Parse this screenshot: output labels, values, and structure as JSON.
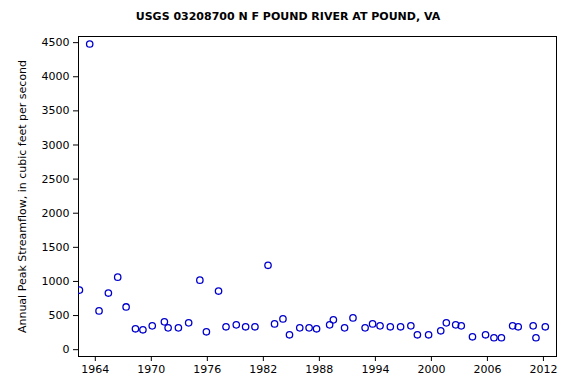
{
  "chart_data": {
    "type": "scatter",
    "title": "USGS 03208700 N F POUND RIVER AT POUND, VA",
    "y_label": "Annual Peak Streamflow, in cubic feet per second",
    "x": [
      1962.3,
      1963.4,
      1964.4,
      1965.4,
      1966.4,
      1967.3,
      1968.3,
      1969.1,
      1970.1,
      1971.4,
      1971.8,
      1972.9,
      1974.0,
      1975.2,
      1975.9,
      1977.2,
      1978.0,
      1979.1,
      1980.1,
      1981.1,
      1982.5,
      1983.2,
      1984.1,
      1984.8,
      1985.9,
      1986.9,
      1987.7,
      1989.1,
      1989.5,
      1990.7,
      1991.6,
      1992.9,
      1993.7,
      1994.5,
      1995.6,
      1996.7,
      1997.8,
      1998.5,
      1999.7,
      2001.0,
      2001.6,
      2002.6,
      2003.2,
      2004.4,
      2005.8,
      2006.7,
      2007.5,
      2008.7,
      2009.3,
      2010.9,
      2011.2,
      2012.2
    ],
    "values": [
      873,
      4480,
      568,
      830,
      1063,
      626,
      306,
      291,
      349,
      408,
      320,
      320,
      393,
      1019,
      262,
      859,
      335,
      364,
      335,
      335,
      1237,
      378,
      451,
      218,
      320,
      320,
      306,
      364,
      437,
      320,
      466,
      320,
      378,
      349,
      335,
      335,
      349,
      218,
      218,
      277,
      393,
      364,
      349,
      189,
      218,
      175,
      175,
      349,
      335,
      349,
      175,
      335
    ],
    "color": "#0000cc",
    "marker": "circle-open",
    "xlim": [
      1962.2,
      2013.4
    ],
    "xticks": [
      1964,
      1970,
      1976,
      1982,
      1988,
      1994,
      2000,
      2006,
      2012
    ],
    "ylim": [
      -100,
      4590
    ],
    "yticks": [
      0,
      500,
      1000,
      1500,
      2000,
      2500,
      3000,
      3500,
      4000,
      4500
    ],
    "grid": false
  }
}
